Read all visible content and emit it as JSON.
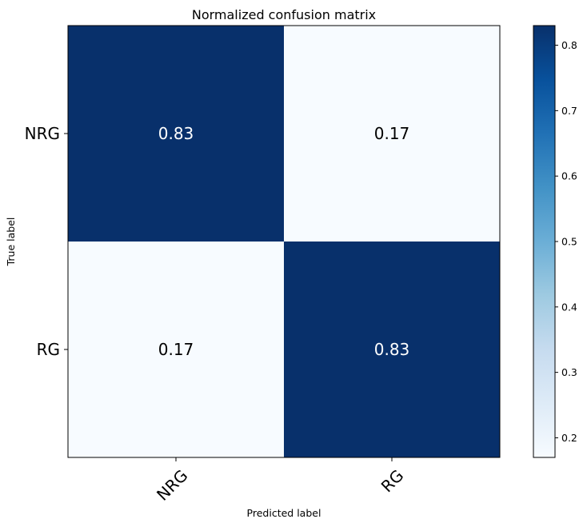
{
  "chart_data": {
    "type": "heatmap",
    "title": "Normalized confusion matrix",
    "xlabel": "Predicted label",
    "ylabel": "True label",
    "x_categories": [
      "NRG",
      "RG"
    ],
    "y_categories": [
      "NRG",
      "RG"
    ],
    "values": [
      [
        0.83,
        0.17
      ],
      [
        0.17,
        0.83
      ]
    ],
    "value_labels": [
      [
        "0.83",
        "0.17"
      ],
      [
        "0.17",
        "0.83"
      ]
    ],
    "colormap": "Blues",
    "color_range": [
      0.17,
      0.83
    ],
    "colorbar_ticks": [
      {
        "value": 0.2,
        "label": "0.2"
      },
      {
        "value": 0.3,
        "label": "0.3"
      },
      {
        "value": 0.4,
        "label": "0.4"
      },
      {
        "value": 0.5,
        "label": "0.5"
      },
      {
        "value": 0.6,
        "label": "0.6"
      },
      {
        "value": 0.7,
        "label": "0.7"
      },
      {
        "value": 0.8,
        "label": "0.8"
      }
    ],
    "colors": {
      "high": "#08306b",
      "low": "#f7fbff",
      "text_on_dark": "#ffffff",
      "text_on_light": "#000000"
    },
    "grid": false
  }
}
